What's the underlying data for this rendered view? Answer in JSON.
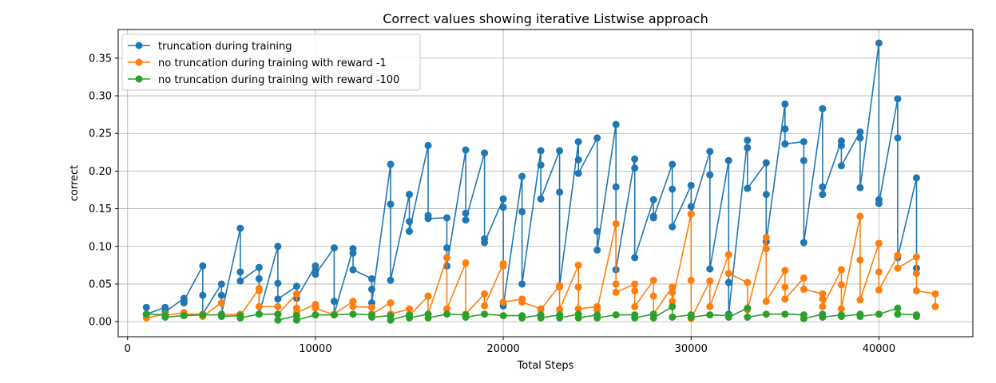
{
  "chart_data": {
    "type": "line",
    "title": "Correct values showing iterative Listwise approach",
    "xlabel": "Total Steps",
    "ylabel": "correct",
    "xlim": [
      -500,
      45000
    ],
    "ylim": [
      -0.02,
      0.388
    ],
    "xticks": [
      0,
      10000,
      20000,
      30000,
      40000
    ],
    "xtick_labels": [
      "0",
      "10000",
      "20000",
      "30000",
      "40000"
    ],
    "yticks": [
      0.0,
      0.05,
      0.1,
      0.15,
      0.2,
      0.25,
      0.3,
      0.35
    ],
    "ytick_labels": [
      "0.00",
      "0.05",
      "0.10",
      "0.15",
      "0.20",
      "0.25",
      "0.30",
      "0.35"
    ],
    "grid": true,
    "legend_position": "top-left",
    "series": [
      {
        "name": "truncation during training",
        "color": "#1f77b4",
        "x": [
          1000,
          1000,
          2000,
          2000,
          3000,
          3000,
          3000,
          4000,
          4000,
          4000,
          5000,
          5000,
          5000,
          6000,
          6000,
          6000,
          7000,
          7000,
          7000,
          8000,
          8000,
          8000,
          9000,
          9000,
          10000,
          10000,
          10000,
          11000,
          11000,
          11000,
          12000,
          12000,
          12000,
          13000,
          13000,
          13000,
          14000,
          14000,
          14000,
          15000,
          15000,
          15000,
          16000,
          16000,
          16000,
          17000,
          17000,
          17000,
          18000,
          18000,
          18000,
          19000,
          19000,
          19000,
          20000,
          20000,
          20000,
          21000,
          21000,
          21000,
          22000,
          22000,
          22000,
          23000,
          23000,
          23000,
          24000,
          24000,
          24000,
          25000,
          25000,
          25000,
          26000,
          26000,
          26000,
          27000,
          27000,
          27000,
          28000,
          28000,
          28000,
          29000,
          29000,
          29000,
          30000,
          30000,
          30000,
          31000,
          31000,
          31000,
          32000,
          32000,
          32000,
          33000,
          33000,
          33000,
          34000,
          34000,
          34000,
          35000,
          35000,
          35000,
          36000,
          36000,
          36000,
          37000,
          37000,
          37000,
          38000,
          38000,
          38000,
          39000,
          39000,
          39000,
          40000,
          40000,
          40000,
          41000,
          41000,
          41000,
          42000,
          42000
        ],
        "values": [
          0.019,
          0.01,
          0.019,
          0.013,
          0.031,
          0.025,
          0.028,
          0.074,
          0.035,
          0.01,
          0.05,
          0.035,
          0.01,
          0.124,
          0.066,
          0.054,
          0.072,
          0.057,
          0.01,
          0.1,
          0.051,
          0.03,
          0.047,
          0.031,
          0.074,
          0.068,
          0.063,
          0.098,
          0.027,
          0.01,
          0.097,
          0.091,
          0.069,
          0.057,
          0.043,
          0.025,
          0.209,
          0.156,
          0.055,
          0.169,
          0.133,
          0.12,
          0.234,
          0.141,
          0.137,
          0.138,
          0.098,
          0.074,
          0.228,
          0.144,
          0.135,
          0.224,
          0.11,
          0.105,
          0.163,
          0.152,
          0.021,
          0.193,
          0.146,
          0.05,
          0.227,
          0.208,
          0.163,
          0.227,
          0.172,
          0.047,
          0.239,
          0.215,
          0.197,
          0.244,
          0.12,
          0.095,
          0.262,
          0.179,
          0.069,
          0.216,
          0.204,
          0.085,
          0.162,
          0.14,
          0.138,
          0.209,
          0.176,
          0.126,
          0.181,
          0.153,
          0.143,
          0.226,
          0.195,
          0.07,
          0.214,
          0.052,
          0.01,
          0.241,
          0.231,
          0.177,
          0.211,
          0.169,
          0.106,
          0.289,
          0.256,
          0.236,
          0.239,
          0.214,
          0.105,
          0.283,
          0.179,
          0.169,
          0.24,
          0.234,
          0.207,
          0.252,
          0.244,
          0.178,
          0.37,
          0.162,
          0.157,
          0.296,
          0.244,
          0.085,
          0.191,
          0.071
        ]
      },
      {
        "name": "no truncation during training with reward -1",
        "color": "#ff7f0e",
        "x": [
          1000,
          1000,
          2000,
          2000,
          3000,
          3000,
          4000,
          4000,
          5000,
          5000,
          6000,
          6000,
          7000,
          7000,
          7000,
          8000,
          8000,
          9000,
          9000,
          9000,
          10000,
          10000,
          11000,
          11000,
          12000,
          12000,
          13000,
          13000,
          14000,
          14000,
          15000,
          15000,
          16000,
          16000,
          17000,
          17000,
          18000,
          18000,
          19000,
          19000,
          20000,
          20000,
          20000,
          21000,
          21000,
          22000,
          22000,
          23000,
          23000,
          23000,
          24000,
          24000,
          24000,
          25000,
          25000,
          26000,
          26000,
          26000,
          27000,
          27000,
          27000,
          28000,
          28000,
          28000,
          29000,
          29000,
          29000,
          30000,
          30000,
          30000,
          31000,
          31000,
          32000,
          32000,
          33000,
          33000,
          34000,
          34000,
          34000,
          35000,
          35000,
          35000,
          36000,
          36000,
          37000,
          37000,
          37000,
          38000,
          38000,
          38000,
          39000,
          39000,
          39000,
          40000,
          40000,
          40000,
          41000,
          41000,
          42000,
          42000,
          42000,
          43000,
          43000
        ],
        "values": [
          0.009,
          0.005,
          0.01,
          0.008,
          0.012,
          0.01,
          0.01,
          0.007,
          0.025,
          0.009,
          0.01,
          0.008,
          0.044,
          0.041,
          0.02,
          0.02,
          0.01,
          0.037,
          0.018,
          0.012,
          0.023,
          0.018,
          0.009,
          0.01,
          0.027,
          0.02,
          0.019,
          0.01,
          0.025,
          0.01,
          0.017,
          0.008,
          0.034,
          0.01,
          0.085,
          0.017,
          0.078,
          0.01,
          0.037,
          0.021,
          0.077,
          0.074,
          0.026,
          0.03,
          0.026,
          0.017,
          0.016,
          0.048,
          0.046,
          0.016,
          0.075,
          0.046,
          0.017,
          0.02,
          0.016,
          0.13,
          0.05,
          0.039,
          0.05,
          0.041,
          0.02,
          0.055,
          0.034,
          0.01,
          0.046,
          0.039,
          0.027,
          0.143,
          0.055,
          0.004,
          0.054,
          0.02,
          0.089,
          0.064,
          0.052,
          0.016,
          0.112,
          0.097,
          0.027,
          0.068,
          0.046,
          0.03,
          0.058,
          0.043,
          0.037,
          0.03,
          0.02,
          0.069,
          0.049,
          0.017,
          0.14,
          0.082,
          0.029,
          0.104,
          0.066,
          0.042,
          0.088,
          0.071,
          0.086,
          0.064,
          0.041,
          0.037,
          0.02
        ]
      },
      {
        "name": "no truncation during training with reward -100",
        "color": "#2ca02c",
        "x": [
          1000,
          2000,
          2000,
          3000,
          4000,
          5000,
          5000,
          6000,
          6000,
          7000,
          8000,
          8000,
          9000,
          9000,
          10000,
          11000,
          12000,
          13000,
          13000,
          14000,
          14000,
          15000,
          15000,
          16000,
          16000,
          17000,
          18000,
          18000,
          19000,
          20000,
          21000,
          21000,
          22000,
          22000,
          23000,
          23000,
          24000,
          24000,
          25000,
          25000,
          26000,
          27000,
          27000,
          28000,
          28000,
          29000,
          29000,
          30000,
          30000,
          31000,
          32000,
          32000,
          33000,
          33000,
          34000,
          35000,
          36000,
          36000,
          37000,
          37000,
          38000,
          38000,
          39000,
          39000,
          40000,
          41000,
          41000,
          42000,
          42000
        ],
        "values": [
          0.01,
          0.009,
          0.006,
          0.008,
          0.009,
          0.009,
          0.007,
          0.008,
          0.005,
          0.01,
          0.01,
          0.002,
          0.008,
          0.002,
          0.009,
          0.009,
          0.01,
          0.009,
          0.006,
          0.008,
          0.002,
          0.009,
          0.005,
          0.01,
          0.005,
          0.01,
          0.009,
          0.006,
          0.01,
          0.008,
          0.008,
          0.005,
          0.009,
          0.005,
          0.009,
          0.005,
          0.01,
          0.005,
          0.009,
          0.005,
          0.009,
          0.009,
          0.005,
          0.01,
          0.005,
          0.02,
          0.006,
          0.009,
          0.006,
          0.009,
          0.008,
          0.006,
          0.018,
          0.006,
          0.01,
          0.01,
          0.009,
          0.004,
          0.01,
          0.006,
          0.009,
          0.007,
          0.01,
          0.007,
          0.01,
          0.018,
          0.01,
          0.009,
          0.007
        ]
      }
    ]
  }
}
